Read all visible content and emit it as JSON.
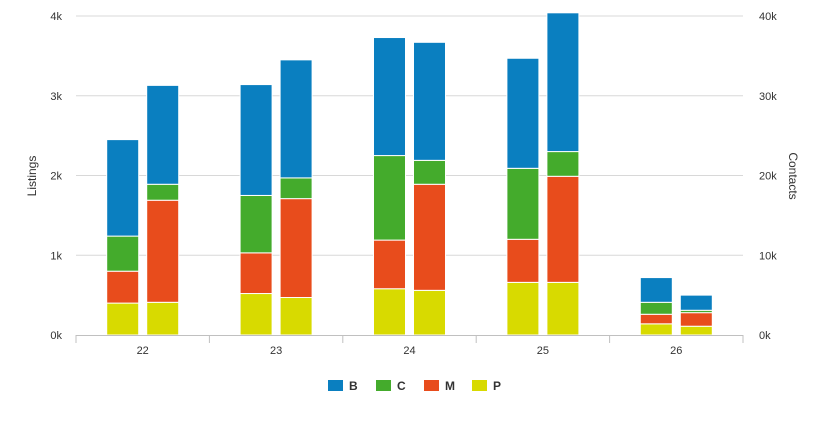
{
  "chart_data": {
    "type": "bar",
    "stacked": true,
    "categories": [
      "22",
      "23",
      "24",
      "25",
      "26"
    ],
    "groups": [
      "Listings",
      "Contacts"
    ],
    "y_left": {
      "title": "Listings",
      "ylim": [
        0,
        4000
      ],
      "ticks": [
        "0k",
        "1k",
        "2k",
        "3k",
        "4k"
      ]
    },
    "y_right": {
      "title": "Contacts",
      "ylim": [
        0,
        40000
      ],
      "ticks": [
        "0k",
        "10k",
        "20k",
        "30k",
        "40k"
      ]
    },
    "series_order": [
      "P",
      "M",
      "C",
      "B"
    ],
    "colors": {
      "B": "#0a7fc0",
      "C": "#44ab2c",
      "M": "#e84c1c",
      "P": "#d8da00"
    },
    "legend": [
      "B",
      "C",
      "M",
      "P"
    ],
    "series": [
      {
        "group": "Listings",
        "name": "P",
        "values": [
          400,
          520,
          580,
          660,
          140
        ]
      },
      {
        "group": "Listings",
        "name": "M",
        "values": [
          400,
          510,
          610,
          540,
          120
        ]
      },
      {
        "group": "Listings",
        "name": "C",
        "values": [
          440,
          720,
          1060,
          890,
          150
        ]
      },
      {
        "group": "Listings",
        "name": "B",
        "values": [
          1210,
          1390,
          1480,
          1380,
          310
        ]
      },
      {
        "group": "Contacts",
        "name": "P",
        "values": [
          4100,
          4700,
          5600,
          6600,
          1100
        ]
      },
      {
        "group": "Contacts",
        "name": "M",
        "values": [
          12800,
          12400,
          13300,
          13300,
          1700
        ]
      },
      {
        "group": "Contacts",
        "name": "C",
        "values": [
          2000,
          2600,
          3000,
          3100,
          300
        ]
      },
      {
        "group": "Contacts",
        "name": "B",
        "values": [
          12400,
          14800,
          14800,
          17400,
          1900
        ]
      }
    ]
  }
}
